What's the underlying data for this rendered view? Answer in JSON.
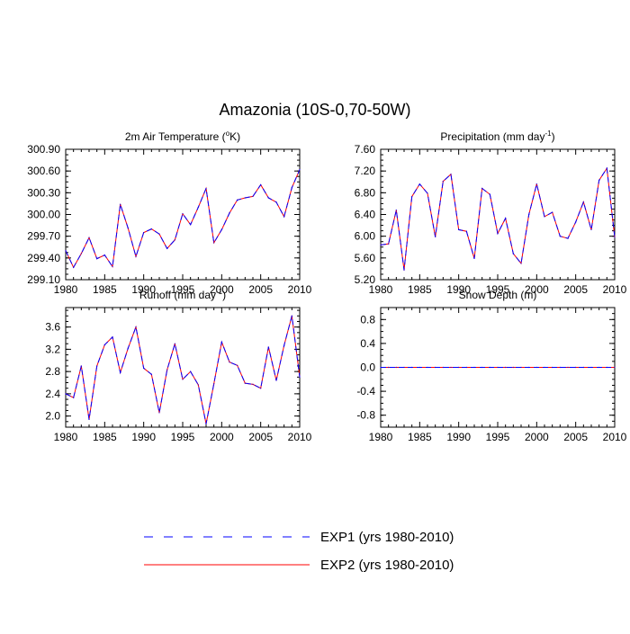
{
  "figure": {
    "title": "Amazonia (10S-0,70-50W)"
  },
  "legend": {
    "items": [
      {
        "label": "EXP1 (yrs 1980-2010)",
        "color": "#0000ff",
        "style": "dashed"
      },
      {
        "label": "EXP2 (yrs 1980-2010)",
        "color": "#ff0000",
        "style": "solid"
      }
    ]
  },
  "chart_data": [
    {
      "type": "line",
      "title": "2m Air Temperature (°K)",
      "title_main": "2m Air Temperature (",
      "title_sup": "o",
      "title_end": "K)",
      "x_ticks": [
        1980,
        1985,
        1990,
        1995,
        2000,
        2005,
        2010
      ],
      "xlim": [
        1980,
        2010
      ],
      "ylim": [
        299.1,
        300.9
      ],
      "y_ticks": [
        299.1,
        299.4,
        299.7,
        300.0,
        300.3,
        300.6,
        300.9
      ],
      "y_tick_labels": [
        "299.10",
        "299.40",
        "299.70",
        "300.00",
        "300.30",
        "300.60",
        "300.90"
      ],
      "x": [
        1980,
        1981,
        1982,
        1983,
        1984,
        1985,
        1986,
        1987,
        1988,
        1989,
        1990,
        1991,
        1992,
        1993,
        1994,
        1995,
        1996,
        1997,
        1998,
        1999,
        2000,
        2001,
        2002,
        2003,
        2004,
        2005,
        2006,
        2007,
        2008,
        2009,
        2010
      ],
      "series": [
        {
          "name": "EXP1 (yrs 1980-2010)",
          "values": [
            299.5,
            299.27,
            299.46,
            299.68,
            299.39,
            299.44,
            299.28,
            300.14,
            299.81,
            299.42,
            299.75,
            299.8,
            299.73,
            299.53,
            299.65,
            300.01,
            299.86,
            300.1,
            300.36,
            299.61,
            299.79,
            300.02,
            300.2,
            300.23,
            300.25,
            300.41,
            300.23,
            300.17,
            299.97,
            300.37,
            300.62
          ]
        },
        {
          "name": "EXP2 (yrs 1980-2010)",
          "values": [
            299.5,
            299.27,
            299.46,
            299.68,
            299.39,
            299.44,
            299.28,
            300.14,
            299.81,
            299.42,
            299.75,
            299.8,
            299.73,
            299.53,
            299.65,
            300.01,
            299.86,
            300.1,
            300.36,
            299.61,
            299.79,
            300.02,
            300.2,
            300.23,
            300.25,
            300.41,
            300.23,
            300.17,
            299.97,
            300.37,
            300.62
          ]
        }
      ]
    },
    {
      "type": "line",
      "title": "Precipitation (mm day-1)",
      "title_main": "Precipitation (mm day",
      "title_sup": "-1",
      "title_end": ")",
      "x_ticks": [
        1980,
        1985,
        1990,
        1995,
        2000,
        2005,
        2010
      ],
      "xlim": [
        1980,
        2010
      ],
      "ylim": [
        5.2,
        7.6
      ],
      "y_ticks": [
        5.2,
        5.6,
        6.0,
        6.4,
        6.8,
        7.2,
        7.6
      ],
      "y_tick_labels": [
        "5.20",
        "5.60",
        "6.00",
        "6.40",
        "6.80",
        "7.20",
        "7.60"
      ],
      "x": [
        1980,
        1981,
        1982,
        1983,
        1984,
        1985,
        1986,
        1987,
        1988,
        1989,
        1990,
        1991,
        1992,
        1993,
        1994,
        1995,
        1996,
        1997,
        1998,
        1999,
        2000,
        2001,
        2002,
        2003,
        2004,
        2005,
        2006,
        2007,
        2008,
        2009,
        2010
      ],
      "series": [
        {
          "name": "EXP1 (yrs 1980-2010)",
          "values": [
            5.84,
            5.86,
            6.48,
            5.38,
            6.73,
            6.96,
            6.79,
            5.99,
            7.01,
            7.14,
            6.12,
            6.09,
            5.59,
            6.88,
            6.77,
            6.05,
            6.33,
            5.68,
            5.5,
            6.4,
            6.96,
            6.36,
            6.44,
            6.0,
            5.96,
            6.26,
            6.63,
            6.12,
            7.03,
            7.25,
            5.98
          ]
        },
        {
          "name": "EXP2 (yrs 1980-2010)",
          "values": [
            5.84,
            5.86,
            6.48,
            5.38,
            6.73,
            6.96,
            6.79,
            5.99,
            7.01,
            7.14,
            6.12,
            6.09,
            5.59,
            6.88,
            6.77,
            6.05,
            6.33,
            5.68,
            5.5,
            6.4,
            6.96,
            6.36,
            6.44,
            6.0,
            5.96,
            6.26,
            6.63,
            6.12,
            7.03,
            7.25,
            5.98
          ]
        }
      ]
    },
    {
      "type": "line",
      "title": "Runoff (mm day-1)",
      "title_main": "Runoff (mm day",
      "title_sup": "-1",
      "title_end": ")",
      "x_ticks": [
        1980,
        1985,
        1990,
        1995,
        2000,
        2005,
        2010
      ],
      "xlim": [
        1980,
        2010
      ],
      "ylim": [
        1.8,
        3.95
      ],
      "y_ticks": [
        2.0,
        2.4,
        2.8,
        3.2,
        3.6
      ],
      "y_tick_labels": [
        "2.0",
        "2.4",
        "2.8",
        "3.2",
        "3.6"
      ],
      "x": [
        1980,
        1981,
        1982,
        1983,
        1984,
        1985,
        1986,
        1987,
        1988,
        1989,
        1990,
        1991,
        1992,
        1993,
        1994,
        1995,
        1996,
        1997,
        1998,
        1999,
        2000,
        2001,
        2002,
        2003,
        2004,
        2005,
        2006,
        2007,
        2008,
        2009,
        2010
      ],
      "series": [
        {
          "name": "EXP1 (yrs 1980-2010)",
          "values": [
            2.4,
            2.33,
            2.9,
            1.94,
            2.9,
            3.28,
            3.42,
            2.78,
            3.22,
            3.6,
            2.86,
            2.75,
            2.06,
            2.83,
            3.3,
            2.66,
            2.8,
            2.56,
            1.86,
            2.58,
            3.33,
            2.97,
            2.91,
            2.59,
            2.57,
            2.5,
            3.24,
            2.64,
            3.27,
            3.8,
            2.7
          ]
        },
        {
          "name": "EXP2 (yrs 1980-2010)",
          "values": [
            2.4,
            2.33,
            2.9,
            1.94,
            2.9,
            3.28,
            3.42,
            2.78,
            3.22,
            3.6,
            2.86,
            2.75,
            2.06,
            2.83,
            3.3,
            2.66,
            2.8,
            2.56,
            1.86,
            2.58,
            3.33,
            2.97,
            2.91,
            2.59,
            2.57,
            2.5,
            3.24,
            2.64,
            3.27,
            3.8,
            2.7
          ]
        }
      ]
    },
    {
      "type": "line",
      "title": "Snow Depth (m)",
      "title_main": "Snow Depth (m)",
      "title_sup": "",
      "title_end": "",
      "x_ticks": [
        1980,
        1985,
        1990,
        1995,
        2000,
        2005,
        2010
      ],
      "xlim": [
        1980,
        2010
      ],
      "ylim": [
        -1.0,
        1.0
      ],
      "y_ticks": [
        -0.8,
        -0.4,
        0.0,
        0.4,
        0.8
      ],
      "y_tick_labels": [
        "-0.8",
        "-0.4",
        "0.0",
        "0.4",
        "0.8"
      ],
      "x": [
        1980,
        1981,
        1982,
        1983,
        1984,
        1985,
        1986,
        1987,
        1988,
        1989,
        1990,
        1991,
        1992,
        1993,
        1994,
        1995,
        1996,
        1997,
        1998,
        1999,
        2000,
        2001,
        2002,
        2003,
        2004,
        2005,
        2006,
        2007,
        2008,
        2009,
        2010
      ],
      "series": [
        {
          "name": "EXP1 (yrs 1980-2010)",
          "values": [
            0,
            0,
            0,
            0,
            0,
            0,
            0,
            0,
            0,
            0,
            0,
            0,
            0,
            0,
            0,
            0,
            0,
            0,
            0,
            0,
            0,
            0,
            0,
            0,
            0,
            0,
            0,
            0,
            0,
            0,
            0
          ]
        },
        {
          "name": "EXP2 (yrs 1980-2010)",
          "values": [
            0,
            0,
            0,
            0,
            0,
            0,
            0,
            0,
            0,
            0,
            0,
            0,
            0,
            0,
            0,
            0,
            0,
            0,
            0,
            0,
            0,
            0,
            0,
            0,
            0,
            0,
            0,
            0,
            0,
            0,
            0
          ]
        }
      ]
    }
  ]
}
